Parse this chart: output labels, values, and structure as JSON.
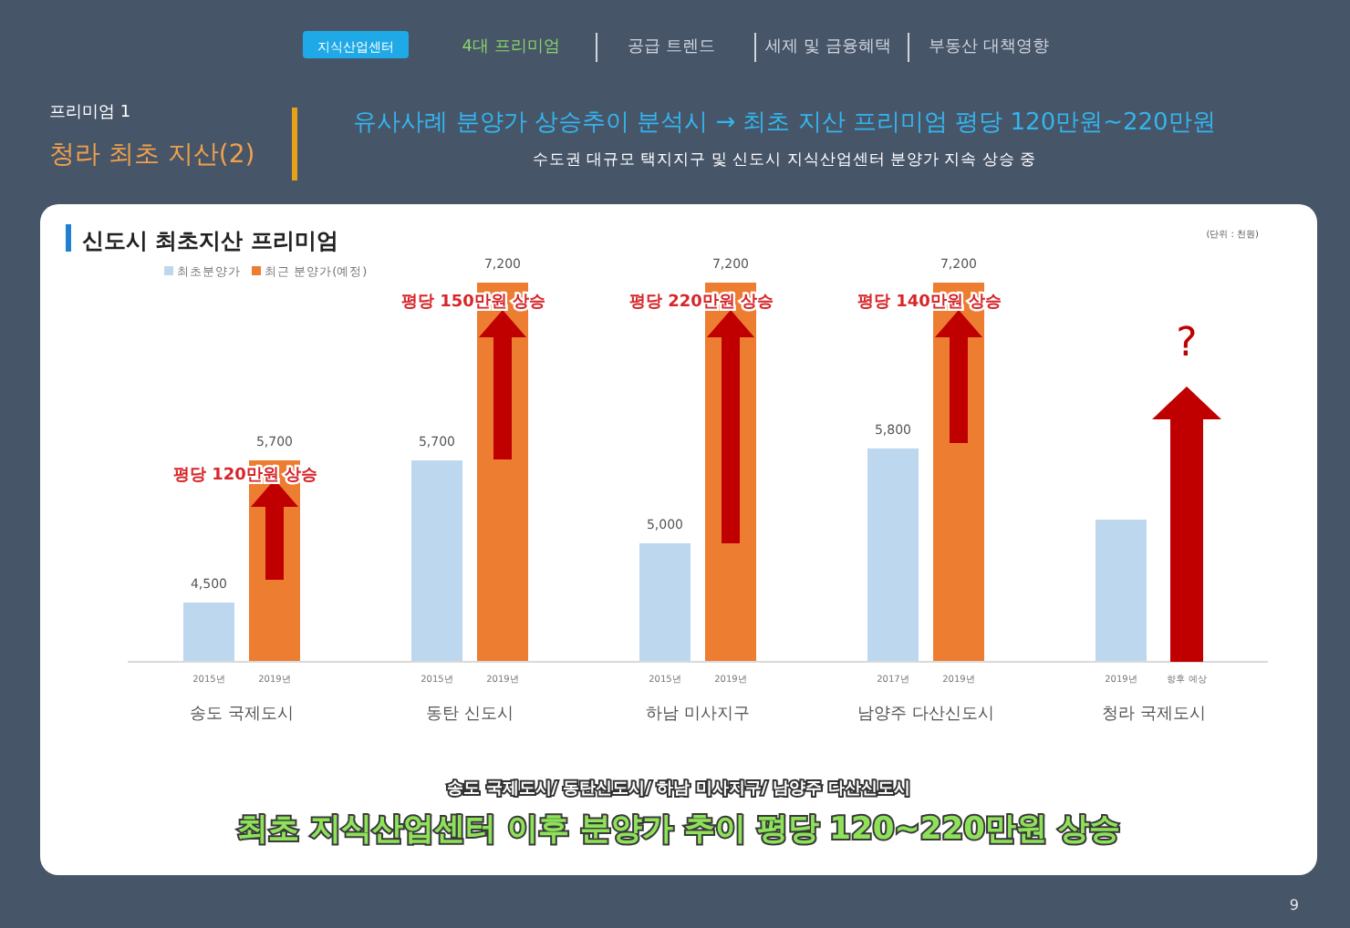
{
  "chart_data": {
    "type": "bar",
    "title": "신도시 최초지산 프리미엄",
    "categories": [
      "송도 국제도시",
      "동탄 신도시",
      "하남 미사지구",
      "남양주 다산신도시",
      "청라 국제도시"
    ],
    "series": [
      {
        "name": "최초분양가",
        "color": "#bdd7ee",
        "values": [
          4500,
          5700,
          5000,
          5800,
          5200
        ],
        "value_labels": [
          "4,500",
          "5,700",
          "5,000",
          "5,800",
          null
        ]
      },
      {
        "name": "최근 분양가(예정)",
        "color": "#ed7d31",
        "values": [
          5700,
          7200,
          7200,
          7200,
          null
        ],
        "value_labels": [
          "5,700",
          "7,200",
          "7,200",
          "7,200",
          null
        ]
      }
    ],
    "ylim": [
      4000,
      7200
    ],
    "tick_labels": "x",
    "legend": "top left",
    "annotations": [
      "지식산업센터",
      "4대 프리미엄",
      "공급 트렌드",
      "세제 및 금융혜택",
      "부동산 대책영향",
      "프리미엄 1",
      "청라 최초 지산(2)",
      "유사사례 분양가 상승추이 분석시 → 최초 지산 프리미엄 평당 120만원~220만원",
      "수도권 대규모 택지지구 및 신도시 지식산업센터 분양가 지속 상승 중",
      "(단위 : 천원)",
      "2015년",
      "2019년",
      "2015년",
      "2019년",
      "2015년",
      "2019년",
      "2017년",
      "2019년",
      "2019년",
      "향후 예상",
      "평당 120만원 상승",
      "평당 150만원 상승",
      "평당 220만원 상승",
      "평당 140만원 상승",
      "?",
      "송도 국제도시/ 동탄신도시/ 하남 미사지구/ 남양주 다산신도시",
      "최초 지식산업센터 이후 분양가 추이 평당 120~220만원 상승",
      "9"
    ]
  }
}
